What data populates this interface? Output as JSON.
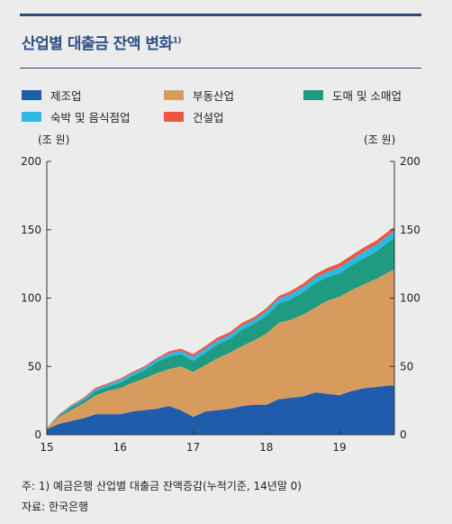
{
  "title": "산업별 대출금 잔액 변화",
  "title_note_marker": "1)",
  "footnote": "주: 1) 예금은행 산업별 대출금 잔액증감(누적기준, 14년말 0)",
  "source": "자료: 한국은행",
  "chart_data": {
    "type": "area",
    "stacked": true,
    "unit_left": "(조 원)",
    "unit_right": "(조 원)",
    "ylim": [
      0,
      200
    ],
    "yticks": [
      0,
      50,
      100,
      150,
      200
    ],
    "xlim": [
      15.0,
      19.75
    ],
    "xticks": [
      15,
      16,
      17,
      18,
      19
    ],
    "xticklabels": [
      "15",
      "16",
      "17",
      "18",
      "19"
    ],
    "grid": false,
    "legend": "top",
    "x": [
      15.0,
      15.17,
      15.33,
      15.5,
      15.67,
      15.83,
      16.0,
      16.17,
      16.33,
      16.5,
      16.67,
      16.83,
      17.0,
      17.17,
      17.33,
      17.5,
      17.67,
      17.83,
      18.0,
      18.17,
      18.33,
      18.5,
      18.67,
      18.83,
      19.0,
      19.17,
      19.33,
      19.5,
      19.67,
      19.75
    ],
    "series": [
      {
        "name": "제조업",
        "color": "#1f5cab",
        "values": [
          4,
          8,
          10,
          12,
          15,
          15,
          15,
          17,
          18,
          19,
          21,
          18,
          13,
          17,
          18,
          19,
          21,
          22,
          22,
          26,
          27,
          28,
          31,
          30,
          29,
          32,
          34,
          35,
          36,
          36
        ]
      },
      {
        "name": "부동산업",
        "color": "#d89b5e",
        "values": [
          1,
          5,
          8,
          11,
          14,
          17,
          19,
          21,
          23,
          26,
          27,
          32,
          33,
          34,
          38,
          41,
          44,
          47,
          52,
          56,
          57,
          60,
          62,
          68,
          72,
          74,
          76,
          79,
          83,
          85
        ]
      },
      {
        "name": "도매 및 소매업",
        "color": "#1e9b80",
        "values": [
          0,
          1,
          2,
          2,
          3,
          3,
          4,
          5,
          6,
          8,
          9,
          9,
          8,
          9,
          10,
          10,
          12,
          12,
          13,
          14,
          15,
          16,
          18,
          17,
          17,
          18,
          19,
          20,
          22,
          23
        ]
      },
      {
        "name": "숙박 및 음식점업",
        "color": "#2db8e3",
        "values": [
          0,
          0.5,
          1,
          1,
          1.5,
          1.5,
          2,
          2,
          2,
          2,
          2.5,
          2.5,
          3,
          3,
          3,
          3,
          3,
          3,
          3.5,
          3.5,
          4,
          4,
          4,
          4,
          4.5,
          4.5,
          5,
          5,
          5,
          5
        ]
      },
      {
        "name": "건설업",
        "color": "#ef5640",
        "values": [
          0,
          0.5,
          0.5,
          1,
          1,
          1,
          1,
          1,
          1,
          1,
          1.5,
          1.5,
          2,
          2,
          2,
          2,
          2,
          2,
          2,
          2,
          2,
          2.5,
          2.5,
          3,
          3,
          3,
          3,
          3,
          3,
          3
        ]
      }
    ]
  }
}
